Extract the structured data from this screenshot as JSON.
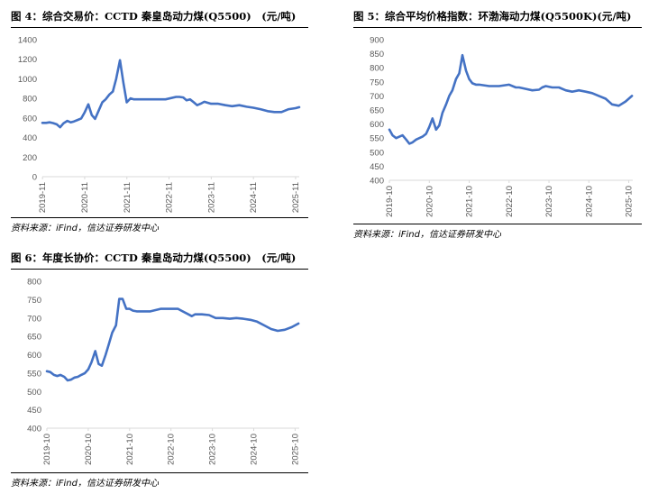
{
  "panels": [
    {
      "title": "图 4：综合交易价：CCTD 秦皇岛动力煤(Q5500)　(元/吨)",
      "source": "资料来源：iFind，信达证券研发中心"
    },
    {
      "title": "图 5：综合平均价格指数：环渤海动力煤(Q5500K)(元/吨)",
      "source": "资料来源：iFind，信达证券研发中心"
    },
    {
      "title": "图 6：年度长协价：CCTD 秦皇岛动力煤(Q5500)　(元/吨)",
      "source": "资料来源：iFind，信达证券研发中心"
    }
  ],
  "chart_data": [
    {
      "type": "line",
      "title": "综合交易价：CCTD 秦皇岛动力煤(Q5500)",
      "unit": "元/吨",
      "xlabel": "",
      "ylabel": "",
      "ylim": [
        0,
        1400
      ],
      "yticks": [
        0,
        200,
        400,
        600,
        800,
        1000,
        1200,
        1400
      ],
      "xticks": [
        "2019-11",
        "2020-11",
        "2021-11",
        "2022-11",
        "2023-11",
        "2024-11",
        "2025-11"
      ],
      "xrange": [
        2019.83,
        2025.92
      ],
      "grid": false,
      "color": "#4472C4",
      "series": [
        {
          "x": [
            2019.83,
            2019.92,
            2020.0,
            2020.08,
            2020.17,
            2020.25,
            2020.33,
            2020.42,
            2020.5,
            2020.58,
            2020.67,
            2020.75,
            2020.83,
            2020.92,
            2021.0,
            2021.08,
            2021.17,
            2021.25,
            2021.33,
            2021.42,
            2021.5,
            2021.58,
            2021.67,
            2021.75,
            2021.83,
            2021.92,
            2022.0,
            2022.08,
            2022.17,
            2022.25,
            2022.5,
            2022.75,
            2023.0,
            2023.08,
            2023.17,
            2023.25,
            2023.33,
            2023.42,
            2023.5,
            2023.58,
            2023.67,
            2023.75,
            2023.83,
            2024.0,
            2024.17,
            2024.33,
            2024.5,
            2024.67,
            2024.83,
            2025.0,
            2025.17,
            2025.33,
            2025.5,
            2025.67,
            2025.83,
            2025.92
          ],
          "y": [
            550,
            550,
            555,
            548,
            535,
            505,
            545,
            570,
            555,
            565,
            580,
            595,
            655,
            740,
            630,
            590,
            680,
            760,
            790,
            840,
            870,
            1000,
            1190,
            960,
            760,
            800,
            790,
            790,
            790,
            790,
            790,
            790,
            815,
            815,
            810,
            780,
            790,
            760,
            730,
            745,
            765,
            755,
            745,
            745,
            730,
            720,
            730,
            715,
            705,
            690,
            670,
            660,
            660,
            690,
            700,
            710
          ]
        }
      ]
    },
    {
      "type": "line",
      "title": "综合平均价格指数：环渤海动力煤(Q5500K)",
      "unit": "元/吨",
      "xlabel": "",
      "ylabel": "",
      "ylim": [
        400,
        900
      ],
      "yticks": [
        400,
        450,
        500,
        550,
        600,
        650,
        700,
        750,
        800,
        850,
        900
      ],
      "xticks": [
        "2019-10",
        "2020-10",
        "2021-10",
        "2022-10",
        "2023-10",
        "2024-10",
        "2025-10"
      ],
      "xrange": [
        2019.75,
        2025.85
      ],
      "grid": false,
      "color": "#4472C4",
      "series": [
        {
          "x": [
            2019.75,
            2019.83,
            2019.92,
            2020.0,
            2020.08,
            2020.17,
            2020.25,
            2020.33,
            2020.42,
            2020.5,
            2020.58,
            2020.67,
            2020.75,
            2020.83,
            2020.92,
            2021.0,
            2021.08,
            2021.17,
            2021.25,
            2021.33,
            2021.42,
            2021.5,
            2021.58,
            2021.67,
            2021.75,
            2021.83,
            2021.92,
            2022.0,
            2022.25,
            2022.5,
            2022.75,
            2022.92,
            2023.0,
            2023.17,
            2023.33,
            2023.5,
            2023.58,
            2023.67,
            2023.83,
            2024.0,
            2024.17,
            2024.33,
            2024.5,
            2024.67,
            2024.83,
            2025.0,
            2025.17,
            2025.33,
            2025.5,
            2025.67,
            2025.83
          ],
          "y": [
            580,
            560,
            550,
            555,
            560,
            545,
            530,
            535,
            545,
            550,
            555,
            565,
            590,
            620,
            580,
            595,
            640,
            670,
            700,
            720,
            760,
            780,
            845,
            790,
            760,
            745,
            740,
            740,
            735,
            735,
            740,
            730,
            730,
            725,
            720,
            722,
            730,
            735,
            730,
            730,
            720,
            715,
            720,
            715,
            710,
            700,
            690,
            670,
            665,
            680,
            700
          ]
        }
      ]
    },
    {
      "type": "line",
      "title": "年度长协价：CCTD 秦皇岛动力煤(Q5500)",
      "unit": "元/吨",
      "xlabel": "",
      "ylabel": "",
      "ylim": [
        400,
        800
      ],
      "yticks": [
        400,
        450,
        500,
        550,
        600,
        650,
        700,
        750,
        800
      ],
      "xticks": [
        "2019-10",
        "2020-10",
        "2021-10",
        "2022-10",
        "2023-10",
        "2024-10",
        "2025-10"
      ],
      "xrange": [
        2019.75,
        2025.85
      ],
      "grid": false,
      "color": "#4472C4",
      "series": [
        {
          "x": [
            2019.75,
            2019.83,
            2019.92,
            2020.0,
            2020.08,
            2020.17,
            2020.25,
            2020.33,
            2020.42,
            2020.5,
            2020.58,
            2020.67,
            2020.75,
            2020.83,
            2020.92,
            2021.0,
            2021.08,
            2021.17,
            2021.25,
            2021.33,
            2021.42,
            2021.5,
            2021.58,
            2021.67,
            2021.75,
            2021.83,
            2021.92,
            2022.0,
            2022.25,
            2022.5,
            2022.75,
            2022.92,
            2023.0,
            2023.17,
            2023.25,
            2023.33,
            2023.5,
            2023.67,
            2023.83,
            2024.0,
            2024.17,
            2024.33,
            2024.5,
            2024.67,
            2024.83,
            2025.0,
            2025.17,
            2025.33,
            2025.5,
            2025.67,
            2025.83
          ],
          "y": [
            555,
            553,
            545,
            542,
            545,
            540,
            530,
            532,
            538,
            540,
            545,
            550,
            560,
            580,
            610,
            575,
            570,
            600,
            630,
            660,
            680,
            752,
            752,
            725,
            725,
            720,
            718,
            718,
            718,
            725,
            725,
            725,
            720,
            710,
            705,
            710,
            710,
            708,
            700,
            700,
            698,
            700,
            698,
            695,
            690,
            680,
            670,
            665,
            668,
            675,
            685
          ]
        }
      ]
    }
  ]
}
